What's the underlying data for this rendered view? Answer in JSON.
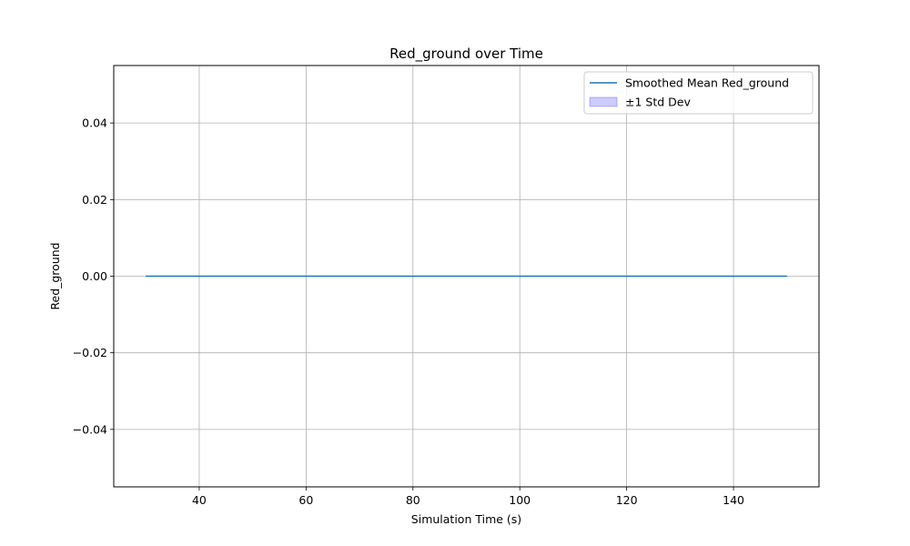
{
  "chart_data": {
    "type": "line",
    "title": "Red_ground over Time",
    "xlabel": "Simulation Time (s)",
    "ylabel": "Red_ground",
    "xlim": [
      24,
      156
    ],
    "ylim": [
      -0.055,
      0.055
    ],
    "xticks": [
      40,
      60,
      80,
      100,
      120,
      140
    ],
    "xtick_labels": [
      "40",
      "60",
      "80",
      "100",
      "120",
      "140"
    ],
    "yticks": [
      -0.04,
      -0.02,
      0.0,
      0.02,
      0.04
    ],
    "ytick_labels": [
      "−0.04",
      "−0.02",
      "0.00",
      "0.02",
      "0.04"
    ],
    "grid": true,
    "legend_position": "top-right",
    "series": [
      {
        "name": "Smoothed Mean Red_ground",
        "color": "#1f77b4",
        "x": [
          30,
          40,
          50,
          60,
          70,
          80,
          90,
          100,
          110,
          120,
          130,
          140,
          150
        ],
        "y": [
          0,
          0,
          0,
          0,
          0,
          0,
          0,
          0,
          0,
          0,
          0,
          0,
          0
        ],
        "std": [
          0,
          0,
          0,
          0,
          0,
          0,
          0,
          0,
          0,
          0,
          0,
          0,
          0
        ]
      }
    ],
    "band": {
      "name": "±1 Std Dev",
      "color": "#0000ff"
    }
  }
}
